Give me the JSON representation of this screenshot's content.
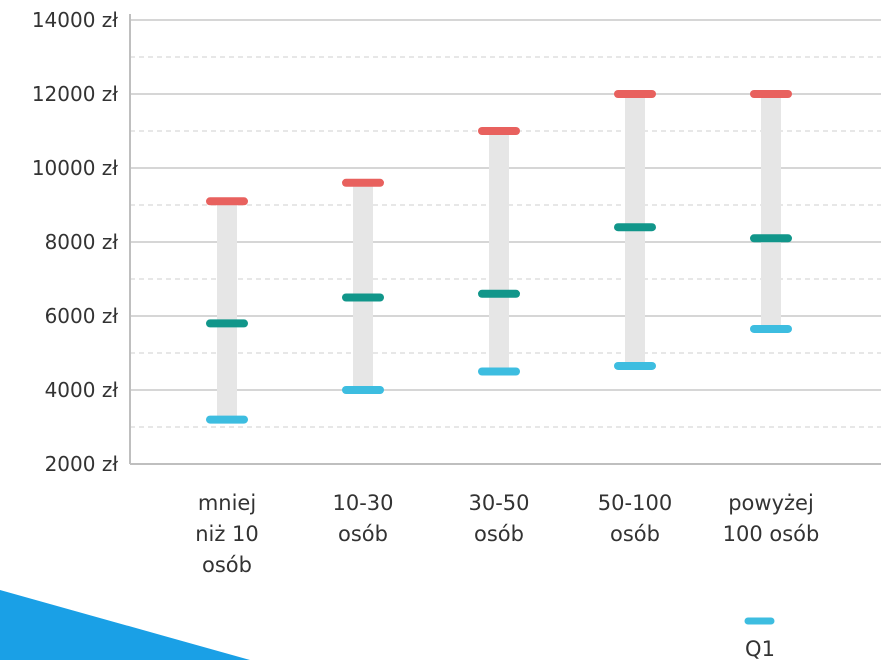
{
  "chart_data": {
    "type": "range",
    "categories": [
      [
        "mniej",
        "niż 10",
        "osób"
      ],
      [
        "10-30",
        "osób"
      ],
      [
        "30-50",
        "osób"
      ],
      [
        "50-100",
        "osób"
      ],
      [
        "powyżej",
        "100 osób"
      ]
    ],
    "series": [
      {
        "name": "Q1",
        "color": "#3dbde0",
        "values": [
          3200,
          4000,
          4500,
          4650,
          5650
        ]
      },
      {
        "color": "#11968a",
        "values": [
          5800,
          6500,
          6600,
          8400,
          8100
        ]
      },
      {
        "color": "#e8615e",
        "values": [
          9100,
          9600,
          11000,
          12000,
          12000
        ]
      }
    ],
    "y_ticks": [
      "2000 zł",
      "4000 zł",
      "6000 zł",
      "8000 zł",
      "10000 zł",
      "12000 zł",
      "14000 zł"
    ],
    "ylim": [
      2000,
      14000
    ],
    "grid": "dashed horizontal every 2000 zł",
    "legend": {
      "position": "bottom-right",
      "items": [
        "Q1"
      ]
    },
    "range_bar_color": "#e6e6e6",
    "decoration_color": "#1aa0e6"
  }
}
